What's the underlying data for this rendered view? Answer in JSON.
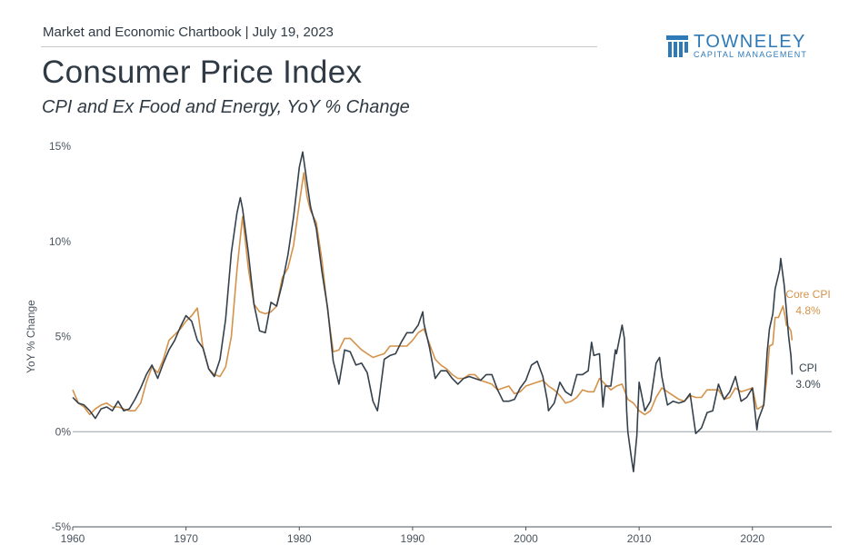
{
  "header": {
    "line": "Market and Economic Chartbook | July 19, 2023",
    "title": "Consumer Price Index",
    "subtitle": "CPI and Ex Food and Energy, YoY % Change"
  },
  "logo": {
    "name": "TOWNELEY",
    "sub": "CAPITAL MANAGEMENT",
    "color": "#2e79b8",
    "icon": "bars-logo-icon"
  },
  "chart_data": {
    "type": "line",
    "ylabel": "YoY % Change",
    "xlabel": "",
    "xlim": [
      1960,
      2027
    ],
    "ylim": [
      -5,
      15
    ],
    "y_ticks": [
      "15%",
      "10%",
      "5%",
      "0%",
      "-5%"
    ],
    "y_tick_values": [
      15,
      10,
      5,
      0,
      -5
    ],
    "x_ticks": [
      "1960",
      "1970",
      "1980",
      "1990",
      "2000",
      "2010",
      "2020"
    ],
    "x_tick_values": [
      1960,
      1970,
      1980,
      1990,
      2000,
      2010,
      2020
    ],
    "grid": false,
    "zero_line": true,
    "series": [
      {
        "name": "CPI",
        "end_label": "3.0%",
        "color": "#34404c",
        "points": [
          [
            1960.0,
            1.8
          ],
          [
            1960.5,
            1.5
          ],
          [
            1961.0,
            1.4
          ],
          [
            1961.5,
            1.1
          ],
          [
            1962.0,
            0.7
          ],
          [
            1962.5,
            1.2
          ],
          [
            1963.0,
            1.3
          ],
          [
            1963.5,
            1.1
          ],
          [
            1964.0,
            1.6
          ],
          [
            1964.5,
            1.1
          ],
          [
            1965.0,
            1.2
          ],
          [
            1965.5,
            1.7
          ],
          [
            1966.0,
            2.3
          ],
          [
            1966.5,
            3.0
          ],
          [
            1967.0,
            3.5
          ],
          [
            1967.5,
            2.8
          ],
          [
            1968.0,
            3.6
          ],
          [
            1968.5,
            4.3
          ],
          [
            1969.0,
            4.8
          ],
          [
            1969.5,
            5.5
          ],
          [
            1970.0,
            6.1
          ],
          [
            1970.5,
            5.8
          ],
          [
            1971.0,
            4.8
          ],
          [
            1971.5,
            4.4
          ],
          [
            1972.0,
            3.3
          ],
          [
            1972.5,
            2.9
          ],
          [
            1973.0,
            3.8
          ],
          [
            1973.5,
            5.9
          ],
          [
            1974.0,
            9.4
          ],
          [
            1974.5,
            11.5
          ],
          [
            1974.8,
            12.3
          ],
          [
            1975.0,
            11.7
          ],
          [
            1975.5,
            9.4
          ],
          [
            1976.0,
            6.7
          ],
          [
            1976.5,
            5.3
          ],
          [
            1977.0,
            5.2
          ],
          [
            1977.5,
            6.8
          ],
          [
            1978.0,
            6.6
          ],
          [
            1978.5,
            7.8
          ],
          [
            1979.0,
            9.3
          ],
          [
            1979.5,
            11.3
          ],
          [
            1980.0,
            13.9
          ],
          [
            1980.3,
            14.7
          ],
          [
            1980.7,
            13.0
          ],
          [
            1981.0,
            11.8
          ],
          [
            1981.5,
            10.7
          ],
          [
            1982.0,
            8.4
          ],
          [
            1982.5,
            6.5
          ],
          [
            1983.0,
            3.7
          ],
          [
            1983.5,
            2.5
          ],
          [
            1984.0,
            4.3
          ],
          [
            1984.5,
            4.2
          ],
          [
            1985.0,
            3.5
          ],
          [
            1985.5,
            3.6
          ],
          [
            1986.0,
            3.1
          ],
          [
            1986.5,
            1.6
          ],
          [
            1986.9,
            1.1
          ],
          [
            1987.0,
            1.5
          ],
          [
            1987.5,
            3.8
          ],
          [
            1988.0,
            4.0
          ],
          [
            1988.5,
            4.1
          ],
          [
            1989.0,
            4.7
          ],
          [
            1989.5,
            5.2
          ],
          [
            1990.0,
            5.2
          ],
          [
            1990.5,
            5.6
          ],
          [
            1990.9,
            6.3
          ],
          [
            1991.0,
            5.7
          ],
          [
            1991.5,
            4.4
          ],
          [
            1992.0,
            2.8
          ],
          [
            1992.5,
            3.2
          ],
          [
            1993.0,
            3.2
          ],
          [
            1993.5,
            2.8
          ],
          [
            1994.0,
            2.5
          ],
          [
            1994.5,
            2.8
          ],
          [
            1995.0,
            2.9
          ],
          [
            1995.5,
            2.8
          ],
          [
            1996.0,
            2.7
          ],
          [
            1996.5,
            3.0
          ],
          [
            1997.0,
            3.0
          ],
          [
            1997.5,
            2.2
          ],
          [
            1998.0,
            1.6
          ],
          [
            1998.5,
            1.6
          ],
          [
            1999.0,
            1.7
          ],
          [
            1999.5,
            2.3
          ],
          [
            2000.0,
            2.7
          ],
          [
            2000.5,
            3.5
          ],
          [
            2001.0,
            3.7
          ],
          [
            2001.5,
            2.9
          ],
          [
            2001.9,
            1.6
          ],
          [
            2002.0,
            1.1
          ],
          [
            2002.5,
            1.5
          ],
          [
            2003.0,
            2.6
          ],
          [
            2003.5,
            2.1
          ],
          [
            2004.0,
            1.9
          ],
          [
            2004.5,
            3.0
          ],
          [
            2005.0,
            3.0
          ],
          [
            2005.5,
            3.2
          ],
          [
            2005.8,
            4.7
          ],
          [
            2006.0,
            4.0
          ],
          [
            2006.5,
            4.1
          ],
          [
            2006.8,
            1.3
          ],
          [
            2007.0,
            2.4
          ],
          [
            2007.5,
            2.4
          ],
          [
            2007.9,
            4.3
          ],
          [
            2008.0,
            4.1
          ],
          [
            2008.5,
            5.6
          ],
          [
            2008.7,
            4.9
          ],
          [
            2008.9,
            1.1
          ],
          [
            2009.0,
            0.0
          ],
          [
            2009.3,
            -1.3
          ],
          [
            2009.5,
            -2.1
          ],
          [
            2009.8,
            -0.2
          ],
          [
            2010.0,
            2.6
          ],
          [
            2010.5,
            1.1
          ],
          [
            2011.0,
            1.6
          ],
          [
            2011.5,
            3.6
          ],
          [
            2011.8,
            3.9
          ],
          [
            2012.0,
            2.9
          ],
          [
            2012.5,
            1.4
          ],
          [
            2013.0,
            1.6
          ],
          [
            2013.5,
            1.5
          ],
          [
            2014.0,
            1.6
          ],
          [
            2014.5,
            2.0
          ],
          [
            2015.0,
            -0.1
          ],
          [
            2015.5,
            0.2
          ],
          [
            2016.0,
            1.0
          ],
          [
            2016.5,
            1.1
          ],
          [
            2017.0,
            2.5
          ],
          [
            2017.5,
            1.7
          ],
          [
            2018.0,
            2.1
          ],
          [
            2018.5,
            2.9
          ],
          [
            2019.0,
            1.6
          ],
          [
            2019.5,
            1.8
          ],
          [
            2020.0,
            2.3
          ],
          [
            2020.4,
            0.1
          ],
          [
            2020.5,
            0.6
          ],
          [
            2021.0,
            1.4
          ],
          [
            2021.3,
            4.2
          ],
          [
            2021.5,
            5.4
          ],
          [
            2021.8,
            6.2
          ],
          [
            2022.0,
            7.5
          ],
          [
            2022.4,
            8.5
          ],
          [
            2022.5,
            9.1
          ],
          [
            2022.8,
            7.7
          ],
          [
            2023.0,
            6.4
          ],
          [
            2023.2,
            5.0
          ],
          [
            2023.4,
            4.0
          ],
          [
            2023.5,
            3.0
          ]
        ]
      },
      {
        "name": "Core CPI",
        "end_label": "4.8%",
        "color": "#d4924a",
        "points": [
          [
            1960.0,
            2.2
          ],
          [
            1960.5,
            1.5
          ],
          [
            1961.0,
            1.3
          ],
          [
            1961.5,
            0.9
          ],
          [
            1962.0,
            1.2
          ],
          [
            1962.5,
            1.4
          ],
          [
            1963.0,
            1.5
          ],
          [
            1963.5,
            1.3
          ],
          [
            1964.0,
            1.3
          ],
          [
            1964.5,
            1.2
          ],
          [
            1965.0,
            1.1
          ],
          [
            1965.5,
            1.1
          ],
          [
            1966.0,
            1.5
          ],
          [
            1966.5,
            2.6
          ],
          [
            1967.0,
            3.4
          ],
          [
            1967.5,
            3.1
          ],
          [
            1968.0,
            3.8
          ],
          [
            1968.5,
            4.8
          ],
          [
            1969.0,
            5.1
          ],
          [
            1969.5,
            5.4
          ],
          [
            1970.0,
            5.8
          ],
          [
            1970.5,
            6.1
          ],
          [
            1971.0,
            6.5
          ],
          [
            1971.5,
            4.4
          ],
          [
            1972.0,
            3.3
          ],
          [
            1972.5,
            3.0
          ],
          [
            1973.0,
            2.9
          ],
          [
            1973.5,
            3.4
          ],
          [
            1974.0,
            5.0
          ],
          [
            1974.5,
            8.5
          ],
          [
            1974.9,
            10.8
          ],
          [
            1975.0,
            11.3
          ],
          [
            1975.5,
            8.6
          ],
          [
            1976.0,
            6.7
          ],
          [
            1976.5,
            6.3
          ],
          [
            1977.0,
            6.2
          ],
          [
            1977.5,
            6.3
          ],
          [
            1978.0,
            6.6
          ],
          [
            1978.5,
            8.1
          ],
          [
            1979.0,
            8.6
          ],
          [
            1979.5,
            9.8
          ],
          [
            1980.0,
            12.0
          ],
          [
            1980.4,
            13.6
          ],
          [
            1980.7,
            12.3
          ],
          [
            1981.0,
            11.6
          ],
          [
            1981.5,
            11.0
          ],
          [
            1982.0,
            9.0
          ],
          [
            1982.5,
            6.4
          ],
          [
            1983.0,
            4.2
          ],
          [
            1983.5,
            4.3
          ],
          [
            1984.0,
            4.9
          ],
          [
            1984.5,
            4.9
          ],
          [
            1985.0,
            4.6
          ],
          [
            1985.5,
            4.3
          ],
          [
            1986.0,
            4.1
          ],
          [
            1986.5,
            3.9
          ],
          [
            1987.0,
            4.0
          ],
          [
            1987.5,
            4.1
          ],
          [
            1988.0,
            4.5
          ],
          [
            1988.5,
            4.5
          ],
          [
            1989.0,
            4.5
          ],
          [
            1989.5,
            4.5
          ],
          [
            1990.0,
            4.8
          ],
          [
            1990.5,
            5.2
          ],
          [
            1991.0,
            5.4
          ],
          [
            1991.5,
            4.6
          ],
          [
            1992.0,
            3.8
          ],
          [
            1992.5,
            3.5
          ],
          [
            1993.0,
            3.3
          ],
          [
            1993.5,
            3.0
          ],
          [
            1994.0,
            2.8
          ],
          [
            1994.5,
            2.8
          ],
          [
            1995.0,
            3.0
          ],
          [
            1995.5,
            3.0
          ],
          [
            1996.0,
            2.7
          ],
          [
            1996.5,
            2.6
          ],
          [
            1997.0,
            2.5
          ],
          [
            1997.5,
            2.2
          ],
          [
            1998.0,
            2.3
          ],
          [
            1998.5,
            2.4
          ],
          [
            1999.0,
            2.0
          ],
          [
            1999.5,
            2.1
          ],
          [
            2000.0,
            2.4
          ],
          [
            2000.5,
            2.5
          ],
          [
            2001.0,
            2.6
          ],
          [
            2001.5,
            2.7
          ],
          [
            2002.0,
            2.4
          ],
          [
            2002.5,
            2.2
          ],
          [
            2003.0,
            1.9
          ],
          [
            2003.5,
            1.5
          ],
          [
            2004.0,
            1.6
          ],
          [
            2004.5,
            1.8
          ],
          [
            2005.0,
            2.2
          ],
          [
            2005.5,
            2.1
          ],
          [
            2006.0,
            2.1
          ],
          [
            2006.5,
            2.8
          ],
          [
            2007.0,
            2.5
          ],
          [
            2007.5,
            2.2
          ],
          [
            2008.0,
            2.4
          ],
          [
            2008.5,
            2.5
          ],
          [
            2009.0,
            1.7
          ],
          [
            2009.5,
            1.5
          ],
          [
            2010.0,
            1.1
          ],
          [
            2010.5,
            0.9
          ],
          [
            2011.0,
            1.1
          ],
          [
            2011.5,
            1.8
          ],
          [
            2012.0,
            2.3
          ],
          [
            2012.5,
            2.1
          ],
          [
            2013.0,
            1.9
          ],
          [
            2013.5,
            1.7
          ],
          [
            2014.0,
            1.6
          ],
          [
            2014.5,
            1.9
          ],
          [
            2015.0,
            1.8
          ],
          [
            2015.5,
            1.8
          ],
          [
            2016.0,
            2.2
          ],
          [
            2016.5,
            2.2
          ],
          [
            2017.0,
            2.2
          ],
          [
            2017.5,
            1.7
          ],
          [
            2018.0,
            1.8
          ],
          [
            2018.5,
            2.3
          ],
          [
            2019.0,
            2.1
          ],
          [
            2019.5,
            2.2
          ],
          [
            2020.0,
            2.3
          ],
          [
            2020.4,
            1.2
          ],
          [
            2020.5,
            1.2
          ],
          [
            2021.0,
            1.4
          ],
          [
            2021.3,
            3.0
          ],
          [
            2021.5,
            4.5
          ],
          [
            2021.8,
            4.6
          ],
          [
            2022.0,
            6.0
          ],
          [
            2022.3,
            6.0
          ],
          [
            2022.7,
            6.6
          ],
          [
            2022.9,
            6.0
          ],
          [
            2023.0,
            5.6
          ],
          [
            2023.2,
            5.5
          ],
          [
            2023.4,
            5.3
          ],
          [
            2023.5,
            4.8
          ]
        ]
      }
    ]
  }
}
